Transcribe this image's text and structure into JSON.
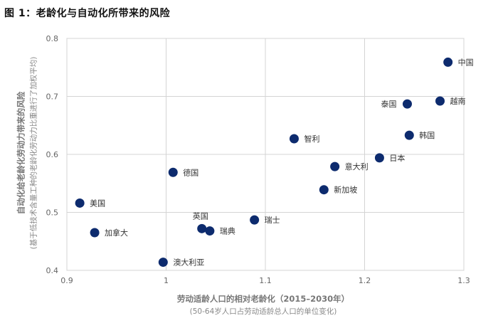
{
  "page": {
    "title": "图 1：老龄化与自动化所带来的风险"
  },
  "chart_data": {
    "type": "scatter",
    "title": "图 1：老龄化与自动化所带来的风险",
    "xlabel": "劳动适龄人口的相对老龄化（2015–2030年）",
    "xlabel_sub": "(50-64岁人口占劳动适龄总人口的单位变化)",
    "ylabel": "自动化给老龄化劳动力带来的风险",
    "ylabel_sub": "(基于低技术含量工种的老龄化劳动力比重进行了加权平均)",
    "xlim": [
      0.9,
      1.3
    ],
    "ylim": [
      0.4,
      0.8
    ],
    "x_ticks": [
      "0.9",
      "1",
      "1.1",
      "1.2",
      "1.3"
    ],
    "y_ticks": [
      "0.4",
      "0.5",
      "0.6",
      "0.7",
      "0.8"
    ],
    "grid": true,
    "marker_color": "#0d2b6e",
    "points": [
      {
        "label": "中国",
        "x": 1.284,
        "y": 0.759
      },
      {
        "label": "越南",
        "x": 1.276,
        "y": 0.692
      },
      {
        "label": "泰国",
        "x": 1.243,
        "y": 0.687
      },
      {
        "label": "韩国",
        "x": 1.245,
        "y": 0.633
      },
      {
        "label": "日本",
        "x": 1.215,
        "y": 0.594
      },
      {
        "label": "智利",
        "x": 1.129,
        "y": 0.627
      },
      {
        "label": "意大利",
        "x": 1.17,
        "y": 0.579
      },
      {
        "label": "新加坡",
        "x": 1.159,
        "y": 0.539
      },
      {
        "label": "德国",
        "x": 1.007,
        "y": 0.569
      },
      {
        "label": "美国",
        "x": 0.913,
        "y": 0.516
      },
      {
        "label": "瑞士",
        "x": 1.089,
        "y": 0.487
      },
      {
        "label": "英国",
        "x": 1.036,
        "y": 0.472
      },
      {
        "label": "瑞典",
        "x": 1.044,
        "y": 0.468
      },
      {
        "label": "加拿大",
        "x": 0.928,
        "y": 0.465
      },
      {
        "label": "澳大利亚",
        "x": 0.997,
        "y": 0.414
      }
    ]
  }
}
